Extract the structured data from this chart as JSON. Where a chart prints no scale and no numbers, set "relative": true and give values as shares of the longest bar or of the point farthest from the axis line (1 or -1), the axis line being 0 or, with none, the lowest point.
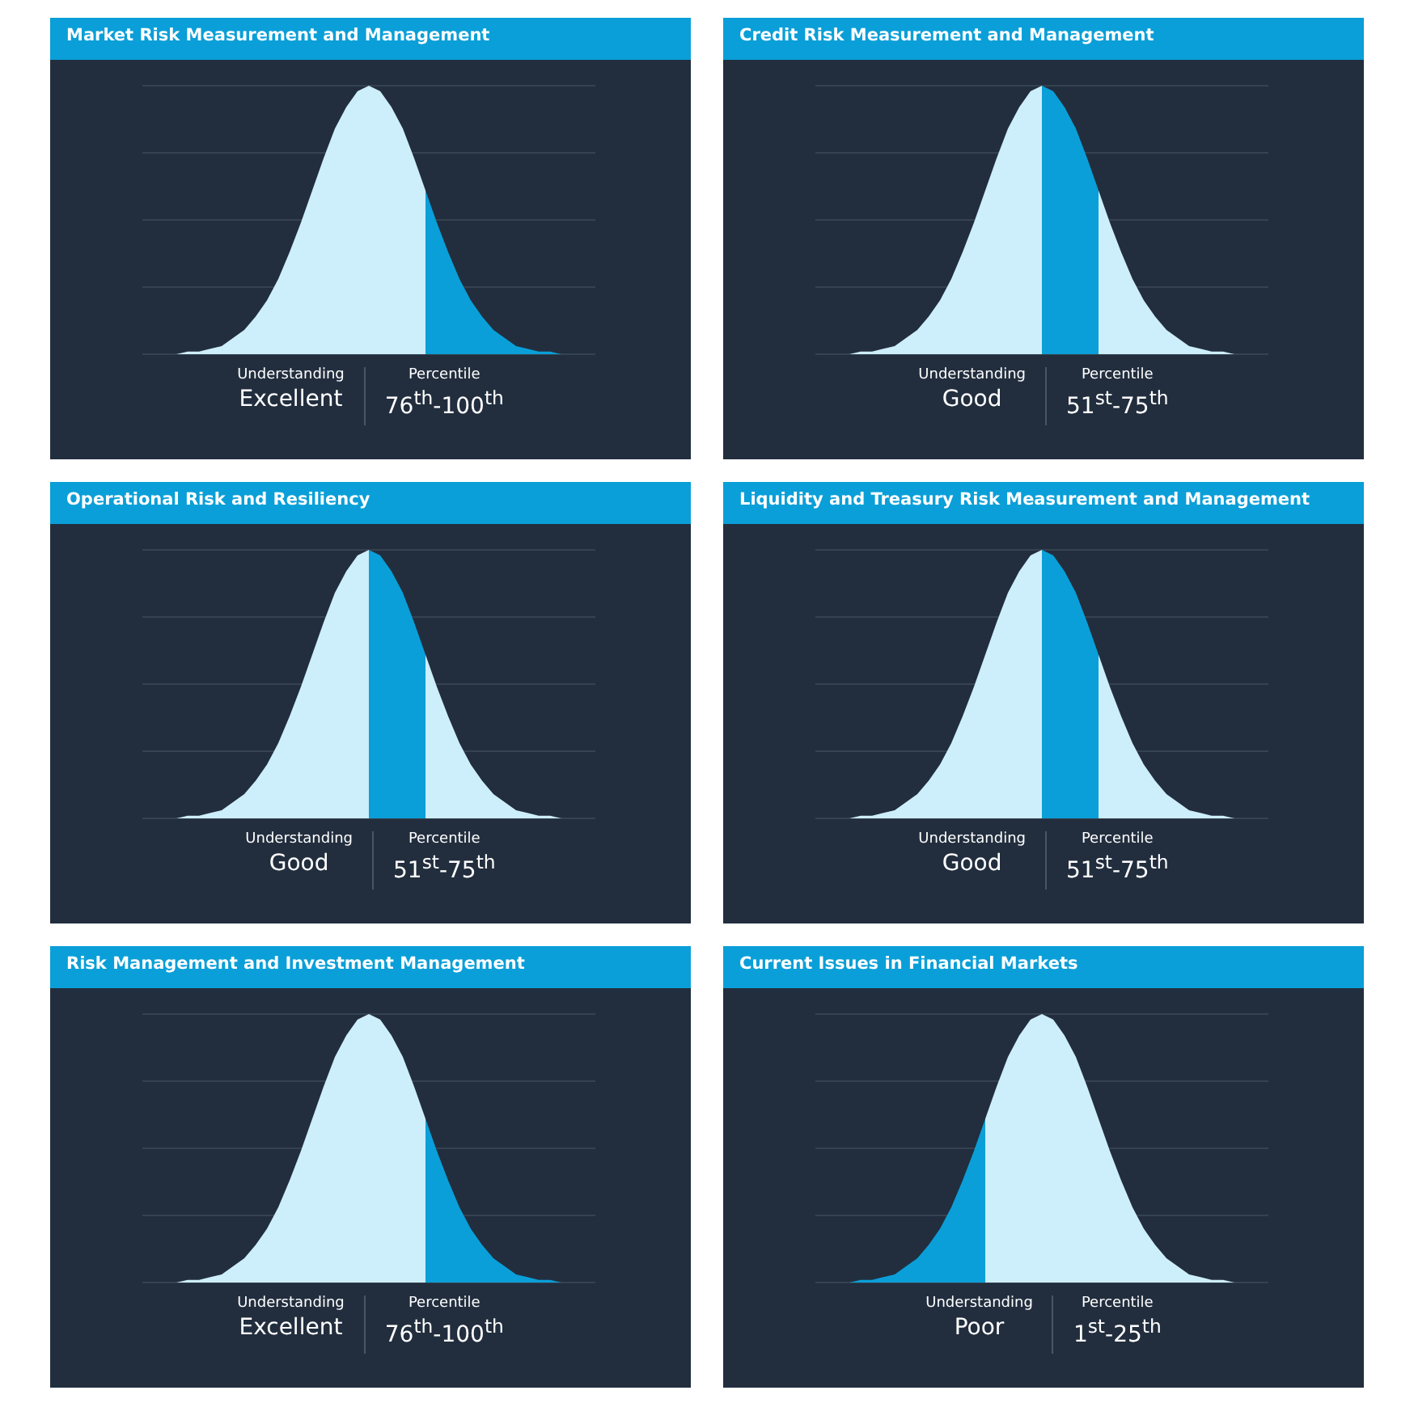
{
  "chart_data": [
    {
      "type": "area",
      "title": "Market Risk Measurement and Management",
      "relative": true,
      "grid": "y",
      "categories": [
        null,
        null,
        null,
        null,
        null,
        null,
        null,
        null,
        null,
        null,
        null,
        null,
        null,
        null,
        null,
        null,
        null,
        null,
        null,
        null,
        null,
        null,
        null,
        null,
        null,
        null,
        null,
        null,
        null,
        null,
        null,
        null,
        null,
        null,
        null,
        null,
        null,
        null,
        null,
        null,
        null
      ],
      "series": [
        {
          "color": "#cdeefb",
          "values": [
            0,
            0,
            0,
            0,
            0.01,
            0.01,
            0.02,
            0.03,
            0.06,
            0.09,
            0.14,
            0.2,
            0.28,
            0.38,
            0.49,
            0.61,
            0.73,
            0.84,
            0.92,
            0.98,
            1,
            0.98,
            0.92,
            0.84,
            0.73,
            0.61,
            null,
            null,
            null,
            null,
            null,
            null,
            null,
            null,
            null,
            null,
            null,
            null,
            null,
            null,
            null
          ]
        },
        {
          "color": "#0a9fd8",
          "values": [
            null,
            null,
            null,
            null,
            null,
            null,
            null,
            null,
            null,
            null,
            null,
            null,
            null,
            null,
            null,
            null,
            null,
            null,
            null,
            null,
            null,
            null,
            null,
            null,
            null,
            0.61,
            0.49,
            0.38,
            0.28,
            0.2,
            0.14,
            0.09,
            0.06,
            0.03,
            0.02,
            0.01,
            0.01,
            0,
            0,
            0,
            0
          ]
        }
      ],
      "annotations": [
        "Understanding",
        "Excellent",
        "Percentile",
        "76$^{th}$-100$^{th}$"
      ]
    },
    {
      "type": "area",
      "title": "Credit Risk Measurement and Management",
      "relative": true,
      "grid": "y",
      "categories": [
        null,
        null,
        null,
        null,
        null,
        null,
        null,
        null,
        null,
        null,
        null,
        null,
        null,
        null,
        null,
        null,
        null,
        null,
        null,
        null,
        null,
        null,
        null,
        null,
        null,
        null,
        null,
        null,
        null,
        null,
        null,
        null,
        null,
        null,
        null,
        null,
        null,
        null,
        null,
        null,
        null
      ],
      "series": [
        {
          "color": "#cdeefb",
          "values": [
            0,
            0,
            0,
            0,
            0.01,
            0.01,
            0.02,
            0.03,
            0.06,
            0.09,
            0.14,
            0.2,
            0.28,
            0.38,
            0.49,
            0.61,
            0.73,
            0.84,
            0.92,
            0.98,
            1,
            null,
            null,
            null,
            null,
            null,
            null,
            null,
            null,
            null,
            null,
            null,
            null,
            null,
            null,
            null,
            null,
            null,
            null,
            null,
            null
          ]
        },
        {
          "color": "#cdeefb",
          "values": [
            null,
            null,
            null,
            null,
            null,
            null,
            null,
            null,
            null,
            null,
            null,
            null,
            null,
            null,
            null,
            null,
            null,
            null,
            null,
            null,
            null,
            null,
            null,
            null,
            null,
            0.61,
            0.49,
            0.38,
            0.28,
            0.2,
            0.14,
            0.09,
            0.06,
            0.03,
            0.02,
            0.01,
            0.01,
            0,
            0,
            0,
            0
          ]
        },
        {
          "color": "#0a9fd8",
          "values": [
            null,
            null,
            null,
            null,
            null,
            null,
            null,
            null,
            null,
            null,
            null,
            null,
            null,
            null,
            null,
            null,
            null,
            null,
            null,
            null,
            1,
            0.98,
            0.92,
            0.84,
            0.73,
            0.61,
            null,
            null,
            null,
            null,
            null,
            null,
            null,
            null,
            null,
            null,
            null,
            null,
            null,
            null,
            null
          ]
        }
      ],
      "annotations": [
        "Understanding",
        "Good",
        "Percentile",
        "51$^{st}$-75$^{th}$"
      ]
    },
    {
      "type": "area",
      "title": "Operational Risk and Resiliency",
      "relative": true,
      "grid": "y",
      "categories": [
        null,
        null,
        null,
        null,
        null,
        null,
        null,
        null,
        null,
        null,
        null,
        null,
        null,
        null,
        null,
        null,
        null,
        null,
        null,
        null,
        null,
        null,
        null,
        null,
        null,
        null,
        null,
        null,
        null,
        null,
        null,
        null,
        null,
        null,
        null,
        null,
        null,
        null,
        null,
        null,
        null
      ],
      "series": [
        {
          "color": "#cdeefb",
          "values": [
            0,
            0,
            0,
            0,
            0.01,
            0.01,
            0.02,
            0.03,
            0.06,
            0.09,
            0.14,
            0.2,
            0.28,
            0.38,
            0.49,
            0.61,
            0.73,
            0.84,
            0.92,
            0.98,
            1,
            null,
            null,
            null,
            null,
            null,
            null,
            null,
            null,
            null,
            null,
            null,
            null,
            null,
            null,
            null,
            null,
            null,
            null,
            null,
            null
          ]
        },
        {
          "color": "#cdeefb",
          "values": [
            null,
            null,
            null,
            null,
            null,
            null,
            null,
            null,
            null,
            null,
            null,
            null,
            null,
            null,
            null,
            null,
            null,
            null,
            null,
            null,
            null,
            null,
            null,
            null,
            null,
            0.61,
            0.49,
            0.38,
            0.28,
            0.2,
            0.14,
            0.09,
            0.06,
            0.03,
            0.02,
            0.01,
            0.01,
            0,
            0,
            0,
            0
          ]
        },
        {
          "color": "#0a9fd8",
          "values": [
            null,
            null,
            null,
            null,
            null,
            null,
            null,
            null,
            null,
            null,
            null,
            null,
            null,
            null,
            null,
            null,
            null,
            null,
            null,
            null,
            1,
            0.98,
            0.92,
            0.84,
            0.73,
            0.61,
            null,
            null,
            null,
            null,
            null,
            null,
            null,
            null,
            null,
            null,
            null,
            null,
            null,
            null,
            null
          ]
        }
      ],
      "annotations": [
        "Understanding",
        "Good",
        "Percentile",
        "51$^{st}$-75$^{th}$"
      ]
    },
    {
      "type": "area",
      "title": "Liquidity and Treasury Risk Measurement and Management",
      "relative": true,
      "grid": "y",
      "categories": [
        null,
        null,
        null,
        null,
        null,
        null,
        null,
        null,
        null,
        null,
        null,
        null,
        null,
        null,
        null,
        null,
        null,
        null,
        null,
        null,
        null,
        null,
        null,
        null,
        null,
        null,
        null,
        null,
        null,
        null,
        null,
        null,
        null,
        null,
        null,
        null,
        null,
        null,
        null,
        null,
        null
      ],
      "series": [
        {
          "color": "#cdeefb",
          "values": [
            0,
            0,
            0,
            0,
            0.01,
            0.01,
            0.02,
            0.03,
            0.06,
            0.09,
            0.14,
            0.2,
            0.28,
            0.38,
            0.49,
            0.61,
            0.73,
            0.84,
            0.92,
            0.98,
            1,
            null,
            null,
            null,
            null,
            null,
            null,
            null,
            null,
            null,
            null,
            null,
            null,
            null,
            null,
            null,
            null,
            null,
            null,
            null,
            null
          ]
        },
        {
          "color": "#cdeefb",
          "values": [
            null,
            null,
            null,
            null,
            null,
            null,
            null,
            null,
            null,
            null,
            null,
            null,
            null,
            null,
            null,
            null,
            null,
            null,
            null,
            null,
            null,
            null,
            null,
            null,
            null,
            0.61,
            0.49,
            0.38,
            0.28,
            0.2,
            0.14,
            0.09,
            0.06,
            0.03,
            0.02,
            0.01,
            0.01,
            0,
            0,
            0,
            0
          ]
        },
        {
          "color": "#0a9fd8",
          "values": [
            null,
            null,
            null,
            null,
            null,
            null,
            null,
            null,
            null,
            null,
            null,
            null,
            null,
            null,
            null,
            null,
            null,
            null,
            null,
            null,
            1,
            0.98,
            0.92,
            0.84,
            0.73,
            0.61,
            null,
            null,
            null,
            null,
            null,
            null,
            null,
            null,
            null,
            null,
            null,
            null,
            null,
            null,
            null
          ]
        }
      ],
      "annotations": [
        "Understanding",
        "Good",
        "Percentile",
        "51$^{st}$-75$^{th}$"
      ]
    },
    {
      "type": "area",
      "title": "Risk Management and Investment Management",
      "relative": true,
      "grid": "y",
      "categories": [
        null,
        null,
        null,
        null,
        null,
        null,
        null,
        null,
        null,
        null,
        null,
        null,
        null,
        null,
        null,
        null,
        null,
        null,
        null,
        null,
        null,
        null,
        null,
        null,
        null,
        null,
        null,
        null,
        null,
        null,
        null,
        null,
        null,
        null,
        null,
        null,
        null,
        null,
        null,
        null,
        null
      ],
      "series": [
        {
          "color": "#cdeefb",
          "values": [
            0,
            0,
            0,
            0,
            0.01,
            0.01,
            0.02,
            0.03,
            0.06,
            0.09,
            0.14,
            0.2,
            0.28,
            0.38,
            0.49,
            0.61,
            0.73,
            0.84,
            0.92,
            0.98,
            1,
            0.98,
            0.92,
            0.84,
            0.73,
            0.61,
            null,
            null,
            null,
            null,
            null,
            null,
            null,
            null,
            null,
            null,
            null,
            null,
            null,
            null,
            null
          ]
        },
        {
          "color": "#0a9fd8",
          "values": [
            null,
            null,
            null,
            null,
            null,
            null,
            null,
            null,
            null,
            null,
            null,
            null,
            null,
            null,
            null,
            null,
            null,
            null,
            null,
            null,
            null,
            null,
            null,
            null,
            null,
            0.61,
            0.49,
            0.38,
            0.28,
            0.2,
            0.14,
            0.09,
            0.06,
            0.03,
            0.02,
            0.01,
            0.01,
            0,
            0,
            0,
            0
          ]
        }
      ],
      "annotations": [
        "Understanding",
        "Excellent",
        "Percentile",
        "76$^{th}$-100$^{th}$"
      ]
    },
    {
      "type": "area",
      "title": "Current Issues in Financial Markets",
      "relative": true,
      "grid": "y",
      "categories": [
        null,
        null,
        null,
        null,
        null,
        null,
        null,
        null,
        null,
        null,
        null,
        null,
        null,
        null,
        null,
        null,
        null,
        null,
        null,
        null,
        null,
        null,
        null,
        null,
        null,
        null,
        null,
        null,
        null,
        null,
        null,
        null,
        null,
        null,
        null,
        null,
        null,
        null,
        null,
        null,
        null
      ],
      "series": [
        {
          "color": "#cdeefb",
          "values": [
            null,
            null,
            null,
            null,
            null,
            null,
            null,
            null,
            null,
            null,
            null,
            null,
            null,
            null,
            null,
            0.61,
            0.73,
            0.84,
            0.92,
            0.98,
            1,
            0.98,
            0.92,
            0.84,
            0.73,
            0.61,
            0.49,
            0.38,
            0.28,
            0.2,
            0.14,
            0.09,
            0.06,
            0.03,
            0.02,
            0.01,
            0.01,
            0,
            0,
            0,
            0
          ]
        },
        {
          "color": "#0a9fd8",
          "values": [
            0,
            0,
            0,
            0,
            0.01,
            0.01,
            0.02,
            0.03,
            0.06,
            0.09,
            0.14,
            0.2,
            0.28,
            0.38,
            0.49,
            0.61,
            null,
            null,
            null,
            null,
            null,
            null,
            null,
            null,
            null,
            null,
            null,
            null,
            null,
            null,
            null,
            null,
            null,
            null,
            null,
            null,
            null,
            null,
            null,
            null,
            null
          ]
        }
      ],
      "annotations": [
        "Understanding",
        "Poor",
        "Percentile",
        "1$^{st}$-25$^{th}$"
      ]
    }
  ]
}
